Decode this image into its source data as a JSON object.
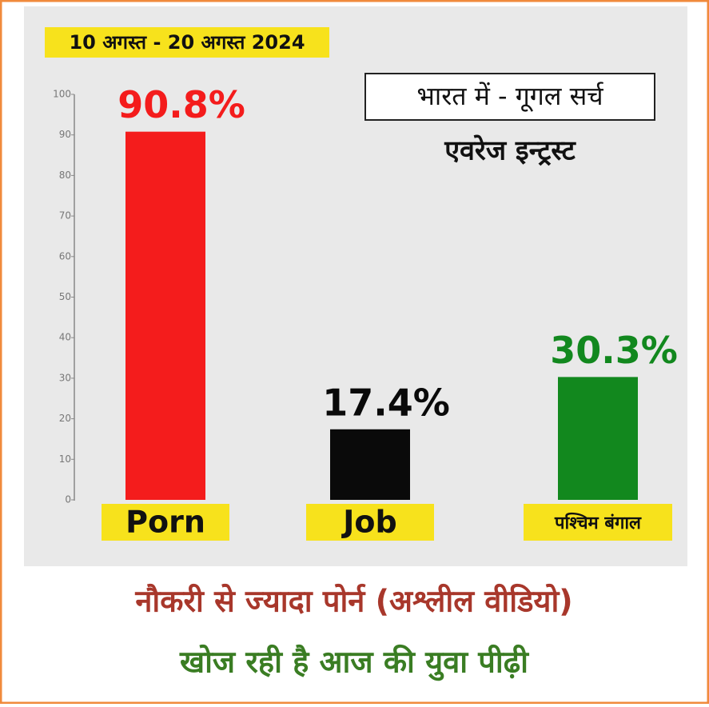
{
  "chart_data": {
    "type": "bar",
    "title": "10 अगस्त - 20 अगस्त 2024",
    "annotations": [
      "भारत में - गूगल सर्च",
      "एवरेज इन्ट्रस्ट"
    ],
    "categories": [
      "Porn",
      "Job",
      "पश्चिम बंगाल"
    ],
    "values": [
      90.8,
      17.4,
      30.3
    ],
    "value_labels": [
      "90.8%",
      "17.4%",
      "30.3%"
    ],
    "colors": [
      "#f41c1c",
      "#0a0a0a",
      "#12881e"
    ],
    "ylim": [
      0,
      100
    ],
    "yticks": [
      0,
      10,
      20,
      30,
      40,
      50,
      60,
      70,
      80,
      90,
      100
    ]
  },
  "caption": [
    "नौकरी से ज्यादा पोर्न (अश्लील वीडियो)",
    "खोज रही है आज की युवा पीढ़ी"
  ]
}
